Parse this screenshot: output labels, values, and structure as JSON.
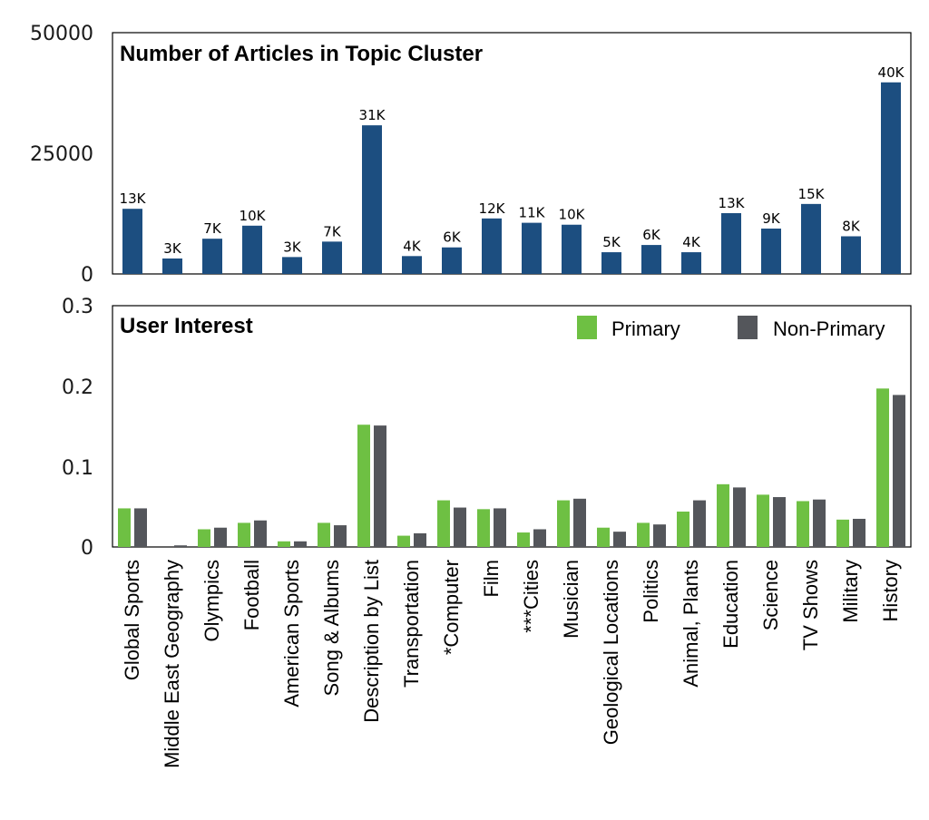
{
  "chart_data": [
    {
      "type": "bar",
      "title": "Number of Articles in Topic Cluster",
      "categories": [
        "Global Sports",
        "Middle East Geography",
        "Olympics",
        "Football",
        "American Sports",
        "Song & Albums",
        "Description by List",
        "Transportation",
        "*Computer",
        "Film",
        "***Cities",
        "Musician",
        "Geological Locations",
        "Politics",
        "Animal, Plants",
        "Education",
        "Science",
        "TV Shows",
        "Military",
        "History"
      ],
      "series": [
        {
          "values": [
            13500,
            3200,
            7300,
            10000,
            3500,
            6700,
            30800,
            3700,
            5500,
            11500,
            10600,
            10200,
            4500,
            6000,
            4500,
            12600,
            9400,
            14500,
            7800,
            39700
          ],
          "labels": [
            "13K",
            "3K",
            "7K",
            "10K",
            "3K",
            "7K",
            "31K",
            "4K",
            "6K",
            "12K",
            "11K",
            "10K",
            "5K",
            "6K",
            "4K",
            "13K",
            "9K",
            "15K",
            "8K",
            "40K"
          ],
          "color": "#1c4e80"
        }
      ],
      "yticks": [
        "0",
        "25000",
        "50000"
      ],
      "ylim": [
        0,
        50000
      ],
      "grid": false
    },
    {
      "type": "bar",
      "title": "User Interest",
      "categories": [
        "Global Sports",
        "Middle East Geography",
        "Olympics",
        "Football",
        "American Sports",
        "Song & Albums",
        "Description by List",
        "Transportation",
        "*Computer",
        "Film",
        "***Cities",
        "Musician",
        "Geological Locations",
        "Politics",
        "Animal, Plants",
        "Education",
        "Science",
        "TV Shows",
        "Military",
        "History"
      ],
      "series": [
        {
          "name": "Primary",
          "color": "#6ec043",
          "values": [
            0.048,
            0.0,
            0.022,
            0.03,
            0.007,
            0.03,
            0.152,
            0.014,
            0.058,
            0.047,
            0.018,
            0.058,
            0.024,
            0.03,
            0.044,
            0.078,
            0.065,
            0.057,
            0.034,
            0.197
          ]
        },
        {
          "name": "Non-Primary",
          "color": "#54565b",
          "values": [
            0.048,
            0.002,
            0.024,
            0.033,
            0.007,
            0.027,
            0.151,
            0.017,
            0.049,
            0.048,
            0.022,
            0.06,
            0.019,
            0.028,
            0.058,
            0.074,
            0.062,
            0.059,
            0.035,
            0.189
          ]
        }
      ],
      "yticks": [
        "0",
        "0.1",
        "0.2",
        "0.3"
      ],
      "ylim": [
        0,
        0.3
      ],
      "legend": "top-right",
      "grid": false
    }
  ]
}
